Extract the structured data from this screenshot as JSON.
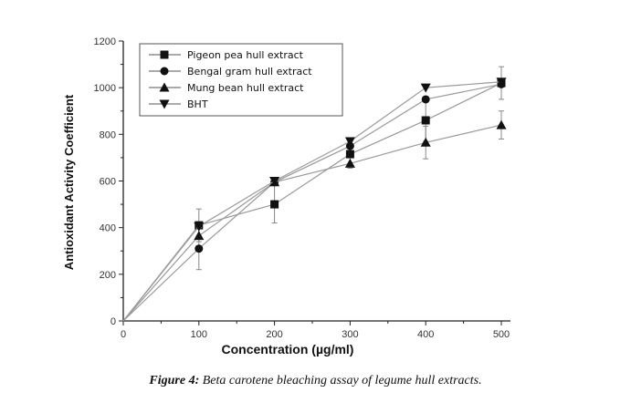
{
  "chart_data": {
    "type": "line",
    "title": "",
    "xlabel": "Concentration (µg/ml)",
    "ylabel": "Antioxidant Activity Coefficient",
    "x": [
      0,
      100,
      200,
      300,
      400,
      500
    ],
    "xlim": [
      0,
      520
    ],
    "ylim": [
      0,
      1200
    ],
    "xticks": [
      "0",
      "100",
      "200",
      "300",
      "400",
      "500"
    ],
    "yticks": [
      "0",
      "200",
      "400",
      "600",
      "800",
      "1000",
      "1200"
    ],
    "legend_position": "top-left",
    "series": [
      {
        "name": "Pigeon pea hull extract",
        "marker": "square",
        "values": [
          0,
          410,
          500,
          715,
          860,
          1020
        ],
        "error": [
          0,
          70,
          80,
          60,
          90,
          70
        ]
      },
      {
        "name": "Bengal gram hull extract",
        "marker": "circle",
        "values": [
          0,
          310,
          595,
          750,
          950,
          1015
        ],
        "error": [
          0,
          90,
          0,
          0,
          0,
          0
        ]
      },
      {
        "name": "Mung bean hull extract",
        "marker": "triangle-up",
        "values": [
          0,
          365,
          595,
          675,
          765,
          840
        ],
        "error": [
          0,
          0,
          0,
          0,
          70,
          60
        ]
      },
      {
        "name": "BHT",
        "marker": "triangle-down",
        "values": [
          0,
          405,
          600,
          770,
          1000,
          1025
        ],
        "error": [
          0,
          0,
          0,
          0,
          0,
          0
        ]
      }
    ]
  },
  "caption": {
    "label": "Figure 4:",
    "text": " Beta carotene bleaching assay of legume hull extracts."
  }
}
